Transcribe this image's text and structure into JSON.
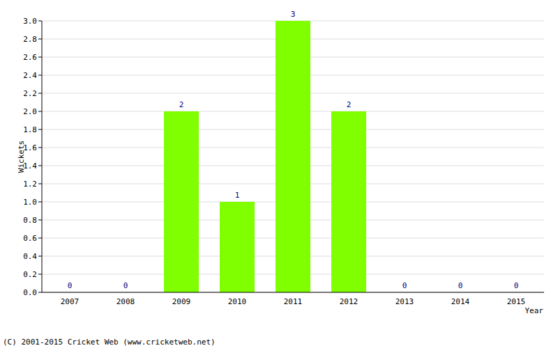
{
  "chart_data": {
    "type": "bar",
    "categories": [
      "2007",
      "2008",
      "2009",
      "2010",
      "2011",
      "2012",
      "2013",
      "2014",
      "2015"
    ],
    "values": [
      0,
      0,
      2,
      1,
      3,
      2,
      0,
      0,
      0
    ],
    "color": "#7fff00",
    "y_label": "Wickets",
    "x_label": "Year",
    "annotations": [
      "(C) 2001-2015 Cricket Web (www.cricketweb.net)"
    ],
    "ylim": [
      0,
      3
    ],
    "yticks": [
      {
        "value": 0,
        "label": "0.0"
      },
      0.2,
      0.4,
      0.6,
      0.8,
      {
        "value": 1,
        "label": "1.0"
      },
      1.2,
      1.4,
      1.6,
      1.8,
      {
        "value": 2,
        "label": "2.0"
      },
      2.2,
      2.4,
      2.6,
      2.8,
      {
        "value": 3,
        "label": "3.0"
      }
    ],
    "grid": true,
    "data_labels": true
  }
}
